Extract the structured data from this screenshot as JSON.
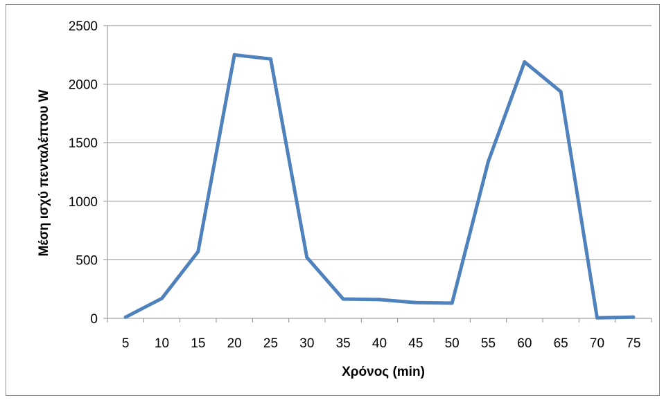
{
  "chart_data": {
    "type": "line",
    "title": "",
    "xlabel": "Χρόνος (min)",
    "ylabel": "Μέση ισχύ πενταλέπτου W",
    "categories": [
      "5",
      "10",
      "15",
      "20",
      "25",
      "30",
      "35",
      "40",
      "45",
      "50",
      "55",
      "60",
      "65",
      "70",
      "75"
    ],
    "series": [
      {
        "values": [
          10,
          170,
          570,
          2250,
          2215,
          520,
          165,
          160,
          135,
          130,
          1340,
          2190,
          1935,
          5,
          10
        ],
        "color": "#4F81BD"
      }
    ],
    "ylim": [
      0,
      2500
    ],
    "yticks": [
      0,
      500,
      1000,
      1500,
      2000,
      2500
    ],
    "grid": true,
    "legend": "none"
  }
}
